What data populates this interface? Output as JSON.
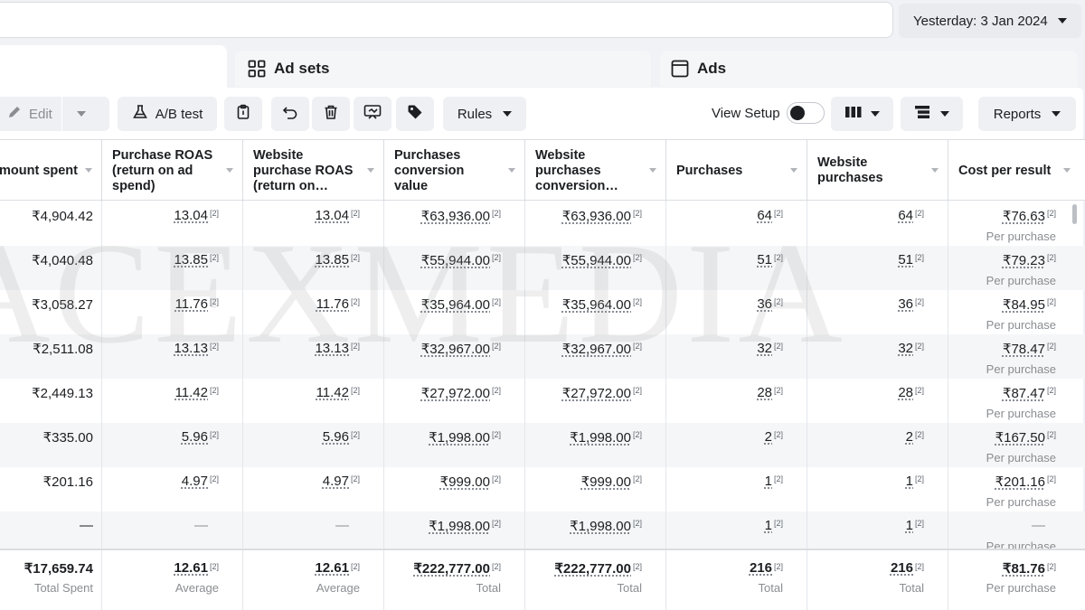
{
  "header": {
    "date_label": "Yesterday: 3 Jan 2024"
  },
  "tabs": [
    {
      "label": "Ad sets",
      "icon": "grid-icon"
    },
    {
      "label": "Ads",
      "icon": "ad-window-icon"
    }
  ],
  "toolbar": {
    "edit_label": "Edit",
    "ab_test_label": "A/B test",
    "rules_label": "Rules",
    "view_setup_label": "View Setup",
    "view_setup_on": false,
    "reports_label": "Reports"
  },
  "table": {
    "columns": [
      "mount spent",
      "Purchase ROAS (return on ad spend)",
      "Website purchase ROAS (return on…",
      "Purchases conversion value",
      "Website purchases conversion value",
      "Purchases",
      "Website purchases",
      "Cost per result"
    ],
    "note": "[2]",
    "rows": [
      [
        "₹4,904.42",
        "13.04",
        "13.04",
        "₹63,936.00",
        "₹63,936.00",
        "64",
        "64",
        "₹76.63"
      ],
      [
        "₹4,040.48",
        "13.85",
        "13.85",
        "₹55,944.00",
        "₹55,944.00",
        "51",
        "51",
        "₹79.23"
      ],
      [
        "₹3,058.27",
        "11.76",
        "11.76",
        "₹35,964.00",
        "₹35,964.00",
        "36",
        "36",
        "₹84.95"
      ],
      [
        "₹2,511.08",
        "13.13",
        "13.13",
        "₹32,967.00",
        "₹32,967.00",
        "32",
        "32",
        "₹78.47"
      ],
      [
        "₹2,449.13",
        "11.42",
        "11.42",
        "₹27,972.00",
        "₹27,972.00",
        "28",
        "28",
        "₹87.47"
      ],
      [
        "₹335.00",
        "5.96",
        "5.96",
        "₹1,998.00",
        "₹1,998.00",
        "2",
        "2",
        "₹167.50"
      ],
      [
        "₹201.16",
        "4.97",
        "4.97",
        "₹999.00",
        "₹999.00",
        "1",
        "1",
        "₹201.16"
      ],
      [
        "—",
        "—",
        "—",
        "₹1,998.00",
        "₹1,998.00",
        "1",
        "1",
        "—"
      ]
    ],
    "cost_sub_label": "Per purchase",
    "totals": {
      "values": [
        "₹17,659.74",
        "12.61",
        "12.61",
        "₹222,777.00",
        "₹222,777.00",
        "216",
        "216",
        "₹81.76"
      ],
      "labels": [
        "Total Spent",
        "Average",
        "Average",
        "Total",
        "Total",
        "Total",
        "Total",
        "Per purchase"
      ]
    }
  },
  "watermark": "ACEXMEDIA"
}
